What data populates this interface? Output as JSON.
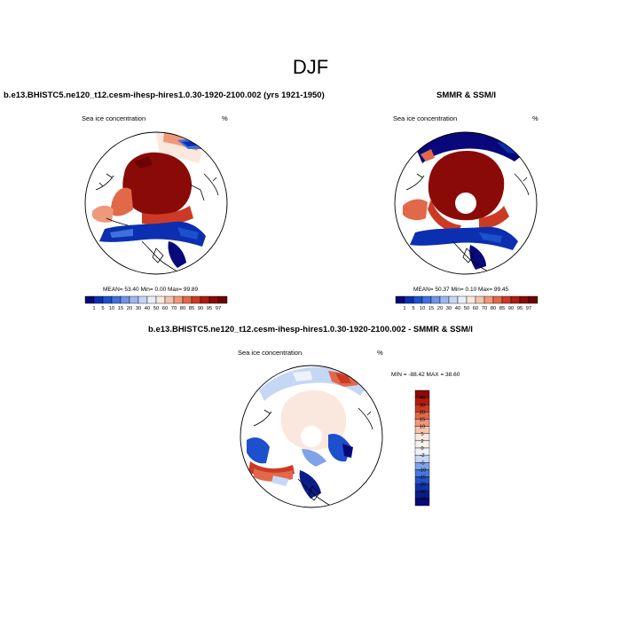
{
  "main_title": "DJF",
  "panels": {
    "model": {
      "title": "b.e13.BHISTC5.ne120_t12.cesm-ihesp-hires1.0.30-1920-2100.002 (yrs 1921-1950)",
      "left_label": "Sea ice concentration",
      "unit": "%",
      "stats": "MEAN=  53.40  Min=   0.00  Max=  99.89"
    },
    "obs": {
      "title": "SMMR & SSM/I",
      "left_label": "Sea ice concentration",
      "unit": "%",
      "stats": "MEAN=  50.37  Min=   0.10  Max=  99.45"
    },
    "diff": {
      "title": "b.e13.BHISTC5.ne120_t12.cesm-ihesp-hires1.0.30-1920-2100.002 - SMMR & SSM/I",
      "left_label": "Sea ice concentration",
      "unit": "%",
      "stats": "MIN = -88.42 MAX =  38.60"
    }
  },
  "chart_data": [
    {
      "type": "heatmap",
      "projection": "north polar stereographic",
      "title": "b.e13.BHISTC5.ne120_t12.cesm-ihesp-hires1.0.30-1920-2100.002 (yrs 1921-1950)",
      "variable": "Sea ice concentration",
      "unit": "%",
      "mean": 53.4,
      "min": 0.0,
      "max": 99.89,
      "colorbar_levels": [
        "1",
        "5",
        "10",
        "15",
        "20",
        "30",
        "40",
        "50",
        "60",
        "70",
        "80",
        "85",
        "90",
        "95",
        "97"
      ],
      "colorbar_colors": [
        "#08087a",
        "#0b2fb0",
        "#1c50cc",
        "#3f72dd",
        "#6f94e6",
        "#9db7ee",
        "#c6d7f5",
        "#e9eef8",
        "#fae8de",
        "#f6c4ac",
        "#f0987a",
        "#e2684a",
        "#cc3a25",
        "#ad1a10",
        "#8a0a08",
        "#6a0504"
      ]
    },
    {
      "type": "heatmap",
      "projection": "north polar stereographic",
      "title": "SMMR & SSM/I",
      "variable": "Sea ice concentration",
      "unit": "%",
      "mean": 50.37,
      "min": 0.1,
      "max": 99.45,
      "colorbar_levels": [
        "1",
        "5",
        "10",
        "15",
        "20",
        "30",
        "40",
        "50",
        "60",
        "70",
        "80",
        "85",
        "90",
        "95",
        "97"
      ],
      "colorbar_colors": [
        "#08087a",
        "#0b2fb0",
        "#1c50cc",
        "#3f72dd",
        "#6f94e6",
        "#9db7ee",
        "#c6d7f5",
        "#e9eef8",
        "#fae8de",
        "#f6c4ac",
        "#f0987a",
        "#e2684a",
        "#cc3a25",
        "#ad1a10",
        "#8a0a08",
        "#6a0504"
      ]
    },
    {
      "type": "heatmap",
      "projection": "north polar stereographic",
      "title": "b.e13.BHISTC5.ne120_t12.cesm-ihesp-hires1.0.30-1920-2100.002 - SMMR & SSM/I",
      "variable": "Sea ice concentration",
      "unit": "%",
      "min": -88.42,
      "max": 38.6,
      "colorbar_levels": [
        "40",
        "30",
        "20",
        "15",
        "10",
        "5",
        "2",
        "0",
        "-2",
        "-5",
        "-10",
        "-15",
        "-20",
        "-30",
        "-40"
      ],
      "colorbar_colors": [
        "#8a0a08",
        "#b21a10",
        "#cc3a25",
        "#e2684a",
        "#f0987a",
        "#f6c4ac",
        "#fae8de",
        "#f7f2ef",
        "#eef3fa",
        "#c6d7f5",
        "#7fa2e8",
        "#4a78dd",
        "#2452c8",
        "#0f33a8",
        "#0a1d8a",
        "#08087a"
      ]
    }
  ]
}
